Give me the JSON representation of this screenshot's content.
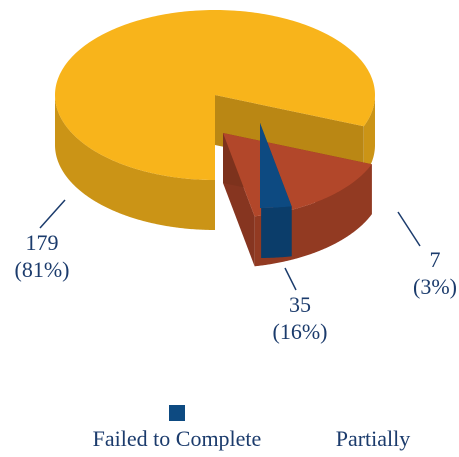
{
  "chart_data": {
    "type": "pie",
    "categories": [
      null,
      "Partially",
      "Failed to Complete"
    ],
    "values": [
      179,
      35,
      7
    ],
    "percents": [
      81,
      16,
      3
    ],
    "percent_labels": [
      "(81%)",
      "(16%)",
      "(3%)"
    ],
    "colors": [
      "#f8b41b",
      "#b2472a",
      "#0d4a81"
    ]
  }
}
